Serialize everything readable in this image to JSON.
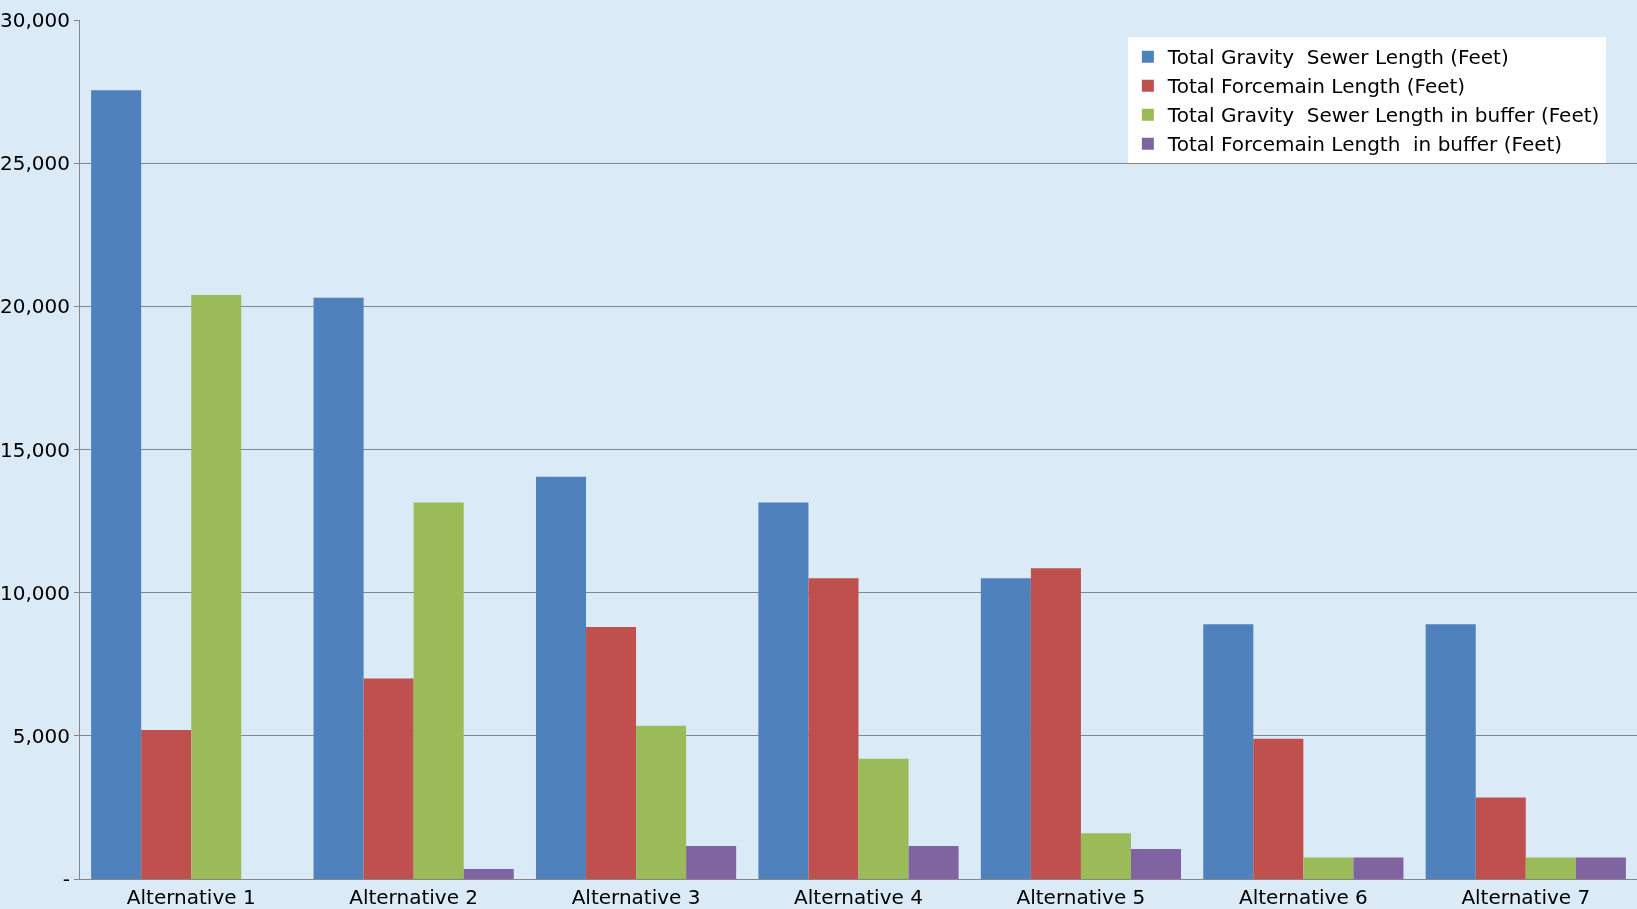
{
  "chart_data": {
    "type": "bar",
    "categories": [
      "Alternative 1",
      "Alternative 2",
      "Alternative 3",
      "Alternative 4",
      "Alternative 5",
      "Alternative 6",
      "Alternative 7"
    ],
    "series": [
      {
        "name": "Total Gravity  Sewer Length (Feet)",
        "color": "#4f81bd",
        "values": [
          27550,
          20300,
          14050,
          13150,
          10500,
          8900,
          8900
        ]
      },
      {
        "name": "Total Forcemain Length (Feet)",
        "color": "#c0504d",
        "values": [
          5200,
          7000,
          8800,
          10500,
          10850,
          4900,
          2850
        ]
      },
      {
        "name": "Total Gravity  Sewer Length in buffer (Feet)",
        "color": "#9bbb59",
        "values": [
          20400,
          13150,
          5350,
          4200,
          1600,
          750,
          750
        ]
      },
      {
        "name": "Total Forcemain Length  in buffer (Feet)",
        "color": "#8064a2",
        "values": [
          null,
          350,
          1150,
          1150,
          1050,
          750,
          750
        ]
      }
    ],
    "ylim": [
      0,
      30000
    ],
    "yticks": [
      {
        "value": 0,
        "label": "-"
      },
      {
        "value": 5000,
        "label": "5,000"
      },
      {
        "value": 10000,
        "label": "10,000"
      },
      {
        "value": 15000,
        "label": "15,000"
      },
      {
        "value": 20000,
        "label": "20,000"
      },
      {
        "value": 25000,
        "label": "25,000"
      },
      {
        "value": 30000,
        "label": "30,000"
      }
    ],
    "grid": "y",
    "legend": "top right"
  }
}
